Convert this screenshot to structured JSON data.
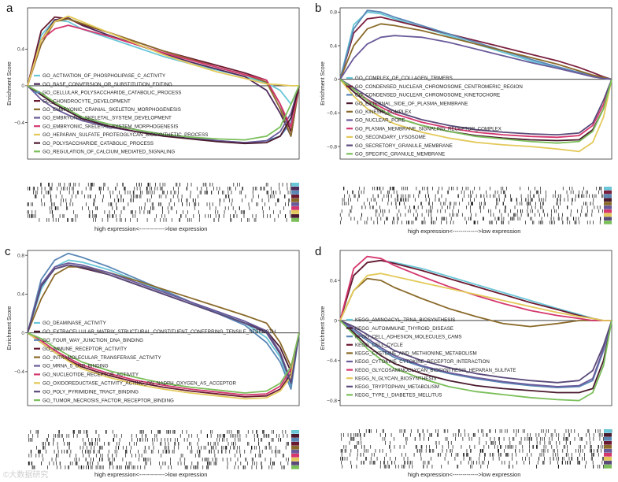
{
  "figure": {
    "xcaption": "high expression<------------->low expression",
    "watermark": "©大数据研究",
    "ylabel": "Enrichment Score"
  },
  "chart_data": [
    {
      "panel": "a",
      "type": "line",
      "title": "a",
      "ylabel": "Enrichment Score",
      "xlabel": "high expression<------------->low expression",
      "ylim": [
        -0.8,
        0.85
      ],
      "yticks": [
        0.4,
        0.0,
        -0.4
      ],
      "ytick_labels": [
        "0.4",
        "0",
        "−0.4"
      ],
      "x": [
        0,
        0.05,
        0.1,
        0.15,
        0.2,
        0.3,
        0.4,
        0.5,
        0.6,
        0.7,
        0.8,
        0.88,
        0.93,
        0.97,
        1.0
      ],
      "series": [
        {
          "name": "GO_ACTIVATION_OF_PHOSPHOLIPASE_C_ACTIVITY",
          "color": "#6ac7d8",
          "values": [
            0,
            0.55,
            0.72,
            0.7,
            0.62,
            0.52,
            0.42,
            0.32,
            0.24,
            0.17,
            0.1,
            0.03,
            -0.05,
            -0.2,
            0
          ]
        },
        {
          "name": "GO_BASE_CONVERSION_OR_SUBSTITUTION_EDITING",
          "color": "#4d2a5a",
          "values": [
            0,
            0.5,
            0.72,
            0.74,
            0.66,
            0.55,
            0.45,
            0.35,
            0.26,
            0.18,
            0.1,
            -0.05,
            -0.3,
            -0.55,
            0
          ]
        },
        {
          "name": "GO_CELLULAR_POLYSACCHARIDE_CATABOLIC_PROCESS",
          "color": "#5a87b6",
          "values": [
            0,
            -0.1,
            -0.2,
            -0.28,
            -0.35,
            -0.42,
            -0.48,
            -0.53,
            -0.56,
            -0.6,
            -0.62,
            -0.6,
            -0.55,
            -0.4,
            0
          ]
        },
        {
          "name": "GO_CHONDROCYTE_DEVELOPMENT",
          "color": "#6a1a30",
          "values": [
            0,
            0.6,
            0.75,
            0.73,
            0.67,
            0.58,
            0.48,
            0.38,
            0.3,
            0.22,
            0.14,
            0.06,
            -0.2,
            -0.5,
            0
          ]
        },
        {
          "name": "GO_EMBRYONIC_CRANIAL_SKELETON_MORPHOGENESIS",
          "color": "#8a6a2a",
          "values": [
            0,
            0.45,
            0.7,
            0.73,
            0.68,
            0.58,
            0.48,
            0.38,
            0.29,
            0.2,
            0.12,
            0.04,
            -0.25,
            -0.55,
            0
          ]
        },
        {
          "name": "GO_EMBRYONIC_SKELETAL_SYSTEM_DEVELOPMENT",
          "color": "#6a5a9a",
          "values": [
            0,
            -0.15,
            -0.25,
            -0.32,
            -0.38,
            -0.45,
            -0.5,
            -0.54,
            -0.57,
            -0.6,
            -0.62,
            -0.6,
            -0.5,
            -0.3,
            0
          ]
        },
        {
          "name": "GO_EMBRYONIC_SKELETAL_SYSTEM_MORPHOGENESIS",
          "color": "#d4376e",
          "values": [
            0,
            0.5,
            0.62,
            0.66,
            0.62,
            0.54,
            0.45,
            0.36,
            0.28,
            0.2,
            0.12,
            0.06,
            -0.2,
            -0.45,
            0
          ]
        },
        {
          "name": "GO_HEPARAN_SULFATE_PROTEOGLYCAN_BIOSYNTHETIC_PROCESS",
          "color": "#e3c95a",
          "values": [
            0,
            0.5,
            0.7,
            0.76,
            0.7,
            0.58,
            0.46,
            0.34,
            0.24,
            0.15,
            0.08,
            0.02,
            0.01,
            0.0,
            0
          ]
        },
        {
          "name": "GO_POLYSACCHARIDE_CATABOLIC_PROCESS",
          "color": "#4a1a2e",
          "values": [
            0,
            -0.1,
            -0.2,
            -0.28,
            -0.36,
            -0.44,
            -0.5,
            -0.55,
            -0.58,
            -0.61,
            -0.63,
            -0.62,
            -0.55,
            -0.35,
            0
          ]
        },
        {
          "name": "GO_REGULATION_OF_CALCIUM_MEDIATED_SIGNALING",
          "color": "#7bbf5a",
          "values": [
            0,
            -0.08,
            -0.18,
            -0.26,
            -0.34,
            -0.42,
            -0.48,
            -0.53,
            -0.56,
            -0.58,
            -0.59,
            -0.55,
            -0.45,
            -0.2,
            0
          ]
        }
      ]
    },
    {
      "panel": "b",
      "type": "line",
      "title": "b",
      "ylabel": "Enrichment Score",
      "xlabel": "high expression<------------->low expression",
      "ylim": [
        -0.95,
        0.85
      ],
      "yticks": [
        0.8,
        0.4,
        0.0,
        -0.4,
        -0.8
      ],
      "ytick_labels": [
        "0.8",
        "0.4",
        "0",
        "−0.4",
        "−0.8"
      ],
      "x": [
        0,
        0.05,
        0.1,
        0.15,
        0.2,
        0.3,
        0.4,
        0.5,
        0.6,
        0.7,
        0.8,
        0.88,
        0.93,
        0.97,
        1.0
      ],
      "series": [
        {
          "name": "GO_COMPLEX_OF_COLLAGEN_TRIMERS",
          "color": "#6ac7d8",
          "values": [
            0,
            0.65,
            0.8,
            0.78,
            0.72,
            0.62,
            0.52,
            0.42,
            0.32,
            0.22,
            0.14,
            0.08,
            0.04,
            0.02,
            0
          ]
        },
        {
          "name": "GO_CONDENSED_NUCLEAR_CHROMOSOME_CENTROMERIC_REGION",
          "color": "#7a1f3d",
          "values": [
            0,
            0.55,
            0.72,
            0.74,
            0.7,
            0.62,
            0.54,
            0.46,
            0.38,
            0.3,
            0.22,
            0.14,
            0.08,
            0.03,
            0
          ]
        },
        {
          "name": "GO_CONDENSED_NUCLEAR_CHROMOSOME_KINETOCHORE",
          "color": "#5a87b6",
          "values": [
            0,
            0.6,
            0.82,
            0.8,
            0.74,
            0.64,
            0.54,
            0.44,
            0.34,
            0.24,
            0.15,
            0.08,
            0.04,
            0.02,
            0
          ]
        },
        {
          "name": "GO_EXTERNAL_SIDE_OF_PLASMA_MEMBRANE",
          "color": "#4a1a2e",
          "values": [
            0,
            -0.15,
            -0.28,
            -0.38,
            -0.45,
            -0.55,
            -0.62,
            -0.67,
            -0.7,
            -0.72,
            -0.73,
            -0.72,
            -0.6,
            -0.35,
            0
          ]
        },
        {
          "name": "GO_KINESIN_COMPLEX",
          "color": "#8a6a2a",
          "values": [
            0,
            0.4,
            0.6,
            0.66,
            0.64,
            0.58,
            0.5,
            0.42,
            0.34,
            0.26,
            0.18,
            0.1,
            0.05,
            0.02,
            0
          ]
        },
        {
          "name": "GO_NUCLEAR_PORE",
          "color": "#6a5a9a",
          "values": [
            0,
            0.25,
            0.42,
            0.5,
            0.52,
            0.5,
            0.44,
            0.36,
            0.28,
            0.2,
            0.13,
            0.07,
            0.03,
            0.01,
            0
          ]
        },
        {
          "name": "GO_PLASMA_MEMBRANE_SIGNALING_RECEPTOR_COMPLEX",
          "color": "#d4376e",
          "values": [
            0,
            -0.12,
            -0.24,
            -0.33,
            -0.41,
            -0.51,
            -0.58,
            -0.63,
            -0.66,
            -0.68,
            -0.69,
            -0.67,
            -0.55,
            -0.3,
            0
          ]
        },
        {
          "name": "GO_SECONDARY_LYSOSOME",
          "color": "#e3c95a",
          "values": [
            0,
            -0.2,
            -0.35,
            -0.45,
            -0.53,
            -0.63,
            -0.7,
            -0.75,
            -0.78,
            -0.8,
            -0.83,
            -0.86,
            -0.75,
            -0.45,
            0
          ]
        },
        {
          "name": "GO_SECRETORY_GRANULE_MEMBRANE",
          "color": "#5a4a7a",
          "values": [
            0,
            -0.1,
            -0.2,
            -0.3,
            -0.38,
            -0.48,
            -0.55,
            -0.6,
            -0.63,
            -0.65,
            -0.66,
            -0.64,
            -0.52,
            -0.25,
            0
          ]
        },
        {
          "name": "GO_SPECIFIC_GRANULE_MEMBRANE",
          "color": "#7bbf5a",
          "values": [
            0,
            -0.12,
            -0.25,
            -0.36,
            -0.45,
            -0.55,
            -0.62,
            -0.68,
            -0.71,
            -0.74,
            -0.76,
            -0.74,
            -0.62,
            -0.35,
            0
          ]
        }
      ]
    },
    {
      "panel": "c",
      "type": "line",
      "title": "c",
      "ylabel": "Enrichment Score",
      "xlabel": "high expression<------------->low expression",
      "ylim": [
        -0.75,
        0.85
      ],
      "yticks": [
        0.8,
        0.4,
        0.0,
        -0.4
      ],
      "ytick_labels": [
        "0.8",
        "0.4",
        "0",
        "−0.4"
      ],
      "x": [
        0,
        0.05,
        0.1,
        0.15,
        0.2,
        0.3,
        0.4,
        0.5,
        0.6,
        0.7,
        0.8,
        0.88,
        0.93,
        0.97,
        1.0
      ],
      "series": [
        {
          "name": "GO_DEAMINASE_ACTIVITY",
          "color": "#6ac7d8",
          "values": [
            0,
            0.45,
            0.68,
            0.75,
            0.73,
            0.65,
            0.54,
            0.43,
            0.32,
            0.21,
            0.1,
            -0.05,
            -0.25,
            -0.55,
            0
          ]
        },
        {
          "name": "GO_EXTRACELLULAR_MATRIX_STRUCTURAL_CONSTITUENT_CONFERRING_TENSILE_STRENGTH",
          "color": "#4a1a2e",
          "values": [
            0,
            0.5,
            0.66,
            0.7,
            0.67,
            0.6,
            0.5,
            0.4,
            0.3,
            0.2,
            0.1,
            0.02,
            -0.15,
            -0.4,
            0
          ]
        },
        {
          "name": "GO_FOUR_WAY_JUNCTION_DNA_BINDING",
          "color": "#5a87b6",
          "values": [
            0,
            0.55,
            0.75,
            0.82,
            0.78,
            0.68,
            0.56,
            0.44,
            0.32,
            0.2,
            0.08,
            -0.1,
            -0.3,
            -0.58,
            0
          ]
        },
        {
          "name": "GO_IMMUNE_RECEPTOR_ACTIVITY",
          "color": "#6a1a30",
          "values": [
            0,
            -0.1,
            -0.2,
            -0.28,
            -0.35,
            -0.44,
            -0.51,
            -0.56,
            -0.6,
            -0.63,
            -0.66,
            -0.65,
            -0.58,
            -0.42,
            0
          ]
        },
        {
          "name": "GO_INTRAMOLECULAR_TRANSFERASE_ACTIVITY",
          "color": "#8a6a2a",
          "values": [
            0,
            0.35,
            0.6,
            0.68,
            0.68,
            0.62,
            0.54,
            0.45,
            0.36,
            0.27,
            0.18,
            0.1,
            -0.1,
            -0.35,
            0
          ]
        },
        {
          "name": "GO_MRNA_5_UTR_BINDING",
          "color": "#6a5a9a",
          "values": [
            0,
            0.5,
            0.68,
            0.72,
            0.7,
            0.62,
            0.52,
            0.42,
            0.32,
            0.22,
            0.12,
            0.02,
            -0.2,
            -0.5,
            0
          ]
        },
        {
          "name": "GO_NUCLEOTIDE_RECEPTOR_ACTIVITY",
          "color": "#d4376e",
          "values": [
            0,
            -0.08,
            -0.18,
            -0.26,
            -0.33,
            -0.42,
            -0.49,
            -0.54,
            -0.58,
            -0.61,
            -0.64,
            -0.63,
            -0.55,
            -0.38,
            0
          ]
        },
        {
          "name": "GO_OXIDOREDUCTASE_ACTIVITY_ACTING_ON_NADPH_OXYGEN_AS_ACCEPTOR",
          "color": "#e3c95a",
          "values": [
            0,
            -0.1,
            -0.2,
            -0.29,
            -0.37,
            -0.46,
            -0.53,
            -0.58,
            -0.62,
            -0.65,
            -0.68,
            -0.67,
            -0.6,
            -0.45,
            0
          ]
        },
        {
          "name": "GO_POLY_PYRIMIDINE_TRACT_BINDING",
          "color": "#5a4a7a",
          "values": [
            0,
            0.48,
            0.66,
            0.7,
            0.68,
            0.6,
            0.5,
            0.4,
            0.3,
            0.2,
            0.1,
            0.0,
            -0.22,
            -0.52,
            0
          ]
        },
        {
          "name": "GO_TUMOR_NECROSIS_FACTOR_RECEPTOR_BINDING",
          "color": "#7bbf5a",
          "values": [
            0,
            -0.06,
            -0.15,
            -0.23,
            -0.3,
            -0.39,
            -0.46,
            -0.52,
            -0.56,
            -0.59,
            -0.62,
            -0.6,
            -0.52,
            -0.35,
            0
          ]
        }
      ]
    },
    {
      "panel": "d",
      "type": "line",
      "title": "d",
      "ylabel": "Enrichment Score",
      "xlabel": "high expression<------------->low expression",
      "ylim": [
        -0.85,
        0.7
      ],
      "yticks": [
        0.4,
        0.0,
        -0.4,
        -0.8
      ],
      "ytick_labels": [
        "0.4",
        "0",
        "−0.4",
        "−0.8"
      ],
      "x": [
        0,
        0.05,
        0.1,
        0.15,
        0.2,
        0.3,
        0.4,
        0.5,
        0.6,
        0.7,
        0.8,
        0.88,
        0.93,
        0.97,
        1.0
      ],
      "series": [
        {
          "name": "KEGG_AMINOACYL_TRNA_BIOSYNTHESIS",
          "color": "#6ac7d8",
          "values": [
            0,
            0.45,
            0.58,
            0.6,
            0.58,
            0.52,
            0.44,
            0.36,
            0.28,
            0.2,
            0.12,
            0.06,
            0.02,
            0.0,
            0
          ]
        },
        {
          "name": "KEGG_AUTOIMMUNE_THYROID_DISEASE",
          "color": "#4a1a2e",
          "values": [
            0,
            -0.12,
            -0.25,
            -0.35,
            -0.43,
            -0.53,
            -0.6,
            -0.65,
            -0.68,
            -0.7,
            -0.72,
            -0.72,
            -0.68,
            -0.4,
            0
          ]
        },
        {
          "name": "KEGG_CELL_ADHESION_MOLECULES_CAMS",
          "color": "#5a87b6",
          "values": [
            0,
            -0.1,
            -0.2,
            -0.29,
            -0.37,
            -0.46,
            -0.53,
            -0.58,
            -0.62,
            -0.65,
            -0.67,
            -0.66,
            -0.6,
            -0.3,
            0
          ]
        },
        {
          "name": "KEGG_CELL_CYCLE",
          "color": "#6a1a30",
          "values": [
            0,
            0.45,
            0.58,
            0.6,
            0.57,
            0.5,
            0.42,
            0.34,
            0.26,
            0.18,
            0.11,
            0.05,
            0.02,
            0.0,
            0
          ]
        },
        {
          "name": "KEGG_CYSTEINE_AND_METHIONINE_METABOLISM",
          "color": "#8a6a2a",
          "values": [
            0,
            0.3,
            0.42,
            0.4,
            0.33,
            0.22,
            0.12,
            0.04,
            -0.03,
            -0.06,
            -0.03,
            0.0,
            0.0,
            0.0,
            0
          ]
        },
        {
          "name": "KEGG_CYTOKINE_CYTOKINE_RECEPTOR_INTERACTION",
          "color": "#6a5a9a",
          "values": [
            0,
            -0.08,
            -0.18,
            -0.27,
            -0.35,
            -0.45,
            -0.52,
            -0.57,
            -0.61,
            -0.64,
            -0.66,
            -0.65,
            -0.58,
            -0.28,
            0
          ]
        },
        {
          "name": "KEGG_GLYCOSAMINOGLYCAN_BIOSYNTHESIS_HEPARAN_SULFATE",
          "color": "#d4376e",
          "values": [
            0,
            0.52,
            0.64,
            0.62,
            0.55,
            0.44,
            0.34,
            0.25,
            0.17,
            0.1,
            0.05,
            0.02,
            0.0,
            0.0,
            0
          ]
        },
        {
          "name": "KEGG_N_GLYCAN_BIOSYNTHESIS",
          "color": "#e3c95a",
          "values": [
            0,
            0.3,
            0.45,
            0.47,
            0.44,
            0.38,
            0.32,
            0.26,
            0.2,
            0.14,
            0.08,
            0.04,
            0.02,
            0.0,
            0
          ]
        },
        {
          "name": "KEGG_TRYPTOPHAN_METABOLISM",
          "color": "#5a4a7a",
          "values": [
            0,
            -0.06,
            -0.14,
            -0.22,
            -0.3,
            -0.4,
            -0.47,
            -0.53,
            -0.57,
            -0.6,
            -0.62,
            -0.6,
            -0.5,
            -0.25,
            0
          ]
        },
        {
          "name": "KEGG_TYPE_I_DIABETES_MELLITUS",
          "color": "#7bbf5a",
          "values": [
            0,
            -0.14,
            -0.28,
            -0.39,
            -0.48,
            -0.58,
            -0.66,
            -0.71,
            -0.74,
            -0.77,
            -0.79,
            -0.8,
            -0.72,
            -0.45,
            0
          ]
        }
      ]
    }
  ]
}
